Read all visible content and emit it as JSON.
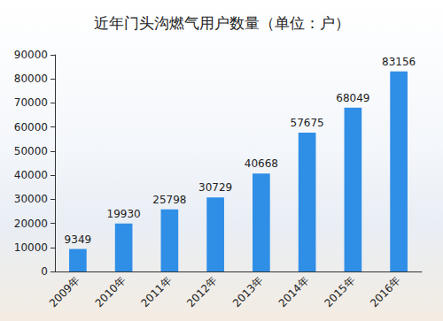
{
  "chart_data": {
    "type": "bar",
    "title": "近年门头沟燃气用户数量（单位：户）",
    "categories": [
      "2009年",
      "2010年",
      "2011年",
      "2012年",
      "2013年",
      "2014年",
      "2015年",
      "2016年"
    ],
    "values": [
      9349,
      19930,
      25798,
      30729,
      40668,
      57675,
      68049,
      83156
    ],
    "color": "#2f8ee6",
    "ylim": [
      0,
      90000
    ],
    "yticks": [
      0,
      10000,
      20000,
      30000,
      40000,
      50000,
      60000,
      70000,
      80000,
      90000
    ],
    "grid": false,
    "data_labels": true
  }
}
